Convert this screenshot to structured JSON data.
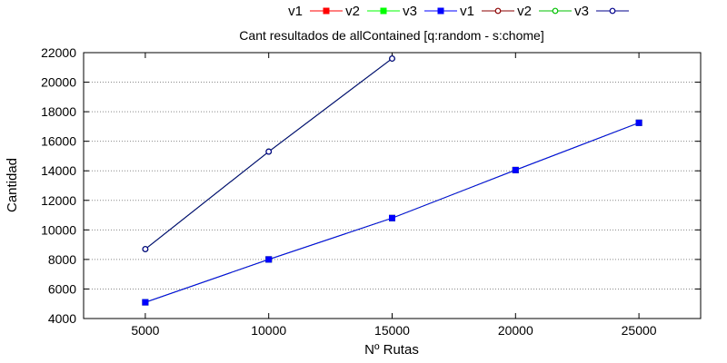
{
  "chart_data": {
    "type": "line",
    "title": "Cant resultados de allContained [q:random - s:chome]",
    "xlabel": "Nº Rutas",
    "ylabel": "Cantidad",
    "xlim": [
      2500,
      27500
    ],
    "ylim": [
      4000,
      22000
    ],
    "x_ticks": [
      "5000",
      "10000",
      "15000",
      "20000",
      "25000"
    ],
    "y_ticks": [
      "4000",
      "6000",
      "8000",
      "10000",
      "12000",
      "14000",
      "16000",
      "18000",
      "20000",
      "22000"
    ],
    "grid": "horizontal dotted",
    "legend_position": "top-right, outside plot area",
    "series": [
      {
        "name": "v1",
        "color": "#ff0000",
        "marker": "filled-square",
        "x": [
          5000,
          10000,
          15000,
          20000,
          25000
        ],
        "values": [
          5100,
          8000,
          10800,
          14050,
          17250
        ]
      },
      {
        "name": "v2",
        "color": "#00ff00",
        "marker": "filled-square",
        "x": [
          5000,
          10000,
          15000,
          20000,
          25000
        ],
        "values": [
          5100,
          8000,
          10800,
          14050,
          17250
        ]
      },
      {
        "name": "v3",
        "color": "#0000ff",
        "marker": "filled-square",
        "x": [
          5000,
          10000,
          15000,
          20000,
          25000
        ],
        "values": [
          5100,
          8000,
          10800,
          14050,
          17250
        ]
      },
      {
        "name": "v1",
        "color": "#8b0000",
        "marker": "open-circle",
        "x": [
          5000,
          10000,
          15000
        ],
        "values": [
          8700,
          15300,
          21600
        ]
      },
      {
        "name": "v2",
        "color": "#00c000",
        "marker": "open-circle",
        "x": [
          5000,
          10000,
          15000
        ],
        "values": [
          8700,
          15300,
          21600
        ]
      },
      {
        "name": "v3",
        "color": "#00008b",
        "marker": "open-circle",
        "x": [
          5000,
          10000,
          15000
        ],
        "values": [
          8700,
          15300,
          21600
        ]
      }
    ]
  }
}
